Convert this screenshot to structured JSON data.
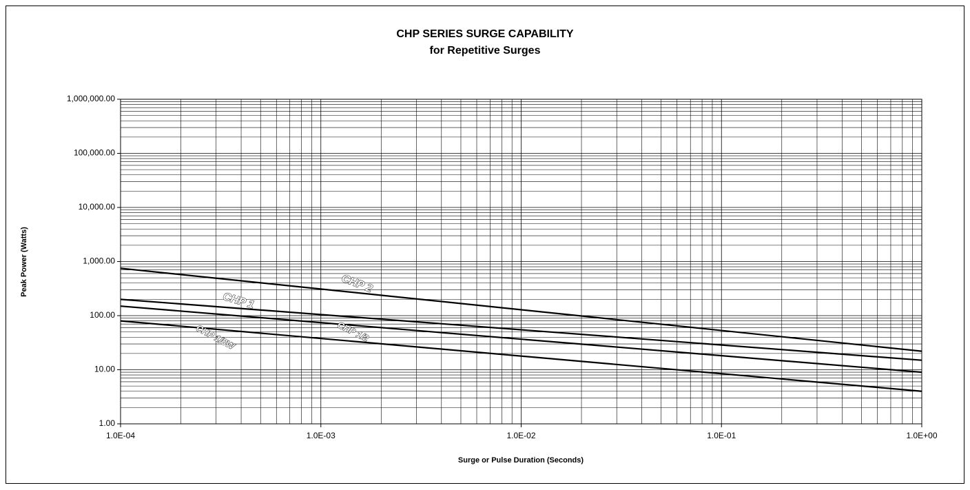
{
  "chart_data": {
    "type": "line",
    "title": "CHP SERIES SURGE CAPABILITY",
    "subtitle": "for Repetitive Surges",
    "x_label": "Surge or Pulse Duration (Seconds)",
    "y_label": "Peak Power (Watts)",
    "x": [
      0.0001,
      1
    ],
    "series": [
      {
        "name": "CHP 2",
        "color": "#000000",
        "values": [
          750,
          22
        ]
      },
      {
        "name": "CHP 1",
        "color": "#000000",
        "values": [
          200,
          15
        ]
      },
      {
        "name": "CHP 1/2",
        "color": "#000000",
        "values": [
          150,
          9
        ]
      },
      {
        "name": "CHP 1/8W",
        "color": "#000000",
        "values": [
          80,
          4
        ]
      }
    ],
    "xscale": "log",
    "yscale": "log",
    "xlim": [
      0.0001,
      1
    ],
    "ylim": [
      1,
      1000000
    ],
    "xticks": [
      {
        "value": 0.0001,
        "label": "1.0E-04"
      },
      {
        "value": 0.001,
        "label": "1.0E-03"
      },
      {
        "value": 0.01,
        "label": "1.0E-02"
      },
      {
        "value": 0.1,
        "label": "1.0E-01"
      },
      {
        "value": 1,
        "label": "1.0E+00"
      }
    ],
    "yticks": [
      {
        "value": 1,
        "label": "1.00"
      },
      {
        "value": 10,
        "label": "10.00"
      },
      {
        "value": 100,
        "label": "100.00"
      },
      {
        "value": 1000,
        "label": "1,000.00"
      },
      {
        "value": 10000,
        "label": "10,000.00"
      },
      {
        "value": 100000,
        "label": "100,000.00"
      },
      {
        "value": 1000000,
        "label": "1,000,000.00"
      }
    ],
    "grid": true
  }
}
